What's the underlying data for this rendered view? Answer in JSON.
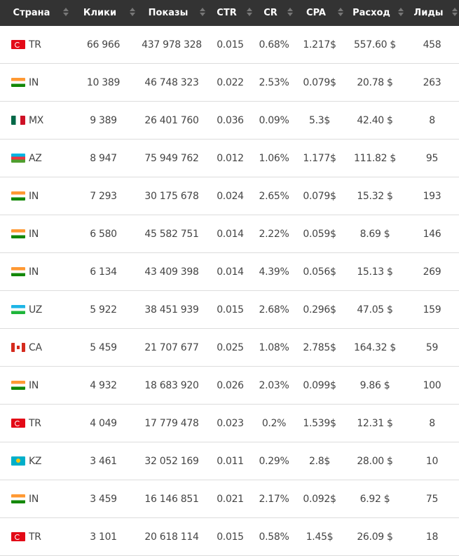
{
  "headers": [
    "Страна",
    "Клики",
    "Показы",
    "CTR",
    "CR",
    "CPA",
    "Расход",
    "Лиды"
  ],
  "rows": [
    {
      "country": "TR",
      "clicks": "66 966",
      "impressions": "437 978 328",
      "ctr": "0.015",
      "cr": "0.68%",
      "cpa": "1.217$",
      "spend": "557.60 $",
      "leads": "458"
    },
    {
      "country": "IN",
      "clicks": "10 389",
      "impressions": "46 748 323",
      "ctr": "0.022",
      "cr": "2.53%",
      "cpa": "0.079$",
      "spend": "20.78 $",
      "leads": "263"
    },
    {
      "country": "MX",
      "clicks": "9 389",
      "impressions": "26 401 760",
      "ctr": "0.036",
      "cr": "0.09%",
      "cpa": "5.3$",
      "spend": "42.40 $",
      "leads": "8"
    },
    {
      "country": "AZ",
      "clicks": "8 947",
      "impressions": "75 949 762",
      "ctr": "0.012",
      "cr": "1.06%",
      "cpa": "1.177$",
      "spend": "111.82 $",
      "leads": "95"
    },
    {
      "country": "IN",
      "clicks": "7 293",
      "impressions": "30 175 678",
      "ctr": "0.024",
      "cr": "2.65%",
      "cpa": "0.079$",
      "spend": "15.32 $",
      "leads": "193"
    },
    {
      "country": "IN",
      "clicks": "6 580",
      "impressions": "45 582 751",
      "ctr": "0.014",
      "cr": "2.22%",
      "cpa": "0.059$",
      "spend": "8.69 $",
      "leads": "146"
    },
    {
      "country": "IN",
      "clicks": "6 134",
      "impressions": "43 409 398",
      "ctr": "0.014",
      "cr": "4.39%",
      "cpa": "0.056$",
      "spend": "15.13 $",
      "leads": "269"
    },
    {
      "country": "UZ",
      "clicks": "5 922",
      "impressions": "38 451 939",
      "ctr": "0.015",
      "cr": "2.68%",
      "cpa": "0.296$",
      "spend": "47.05 $",
      "leads": "159"
    },
    {
      "country": "CA",
      "clicks": "5 459",
      "impressions": "21 707 677",
      "ctr": "0.025",
      "cr": "1.08%",
      "cpa": "2.785$",
      "spend": "164.32 $",
      "leads": "59"
    },
    {
      "country": "IN",
      "clicks": "4 932",
      "impressions": "18 683 920",
      "ctr": "0.026",
      "cr": "2.03%",
      "cpa": "0.099$",
      "spend": "9.86 $",
      "leads": "100"
    },
    {
      "country": "TR",
      "clicks": "4 049",
      "impressions": "17 779 478",
      "ctr": "0.023",
      "cr": "0.2%",
      "cpa": "1.539$",
      "spend": "12.31 $",
      "leads": "8"
    },
    {
      "country": "KZ",
      "clicks": "3 461",
      "impressions": "32 052 169",
      "ctr": "0.011",
      "cr": "0.29%",
      "cpa": "2.8$",
      "spend": "28.00 $",
      "leads": "10"
    },
    {
      "country": "IN",
      "clicks": "3 459",
      "impressions": "16 146 851",
      "ctr": "0.021",
      "cr": "2.17%",
      "cpa": "0.092$",
      "spend": "6.92 $",
      "leads": "75"
    },
    {
      "country": "TR",
      "clicks": "3 101",
      "impressions": "20 618 114",
      "ctr": "0.015",
      "cr": "0.58%",
      "cpa": "1.45$",
      "spend": "26.09 $",
      "leads": "18"
    }
  ]
}
